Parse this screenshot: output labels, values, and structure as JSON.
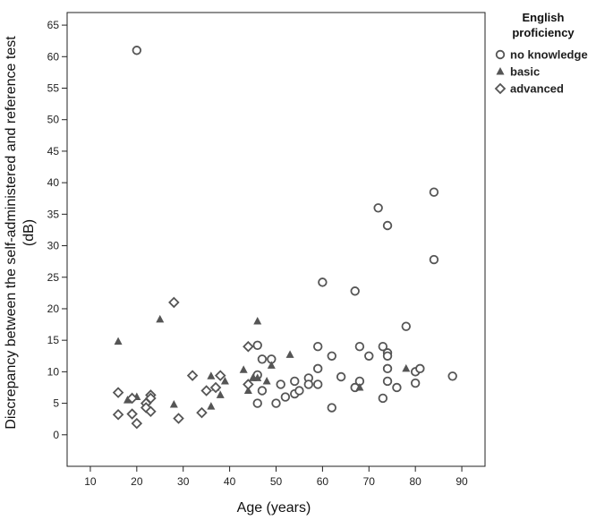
{
  "chart_data": {
    "type": "scatter",
    "title": "",
    "xlabel": "Age (years)",
    "ylabel_line1": "Discrepancy between the self-administered and reference test",
    "ylabel_line2": "(dB)",
    "xlim": [
      5,
      95
    ],
    "ylim": [
      -5,
      67
    ],
    "xticks": [
      10,
      20,
      30,
      40,
      50,
      60,
      70,
      80,
      90
    ],
    "yticks": [
      0,
      5,
      10,
      15,
      20,
      25,
      30,
      35,
      40,
      45,
      50,
      55,
      60,
      65
    ],
    "grid": false,
    "legend_title_line1": "English",
    "legend_title_line2": "proficiency",
    "legend_position": "right",
    "marker_color": "#555555",
    "series": [
      {
        "name": "no knowledge",
        "marker": "circle",
        "points": [
          [
            20,
            61
          ],
          [
            46,
            14.2
          ],
          [
            47,
            12
          ],
          [
            46,
            9.5
          ],
          [
            47,
            7
          ],
          [
            46,
            5
          ],
          [
            49,
            12
          ],
          [
            50,
            5
          ],
          [
            51,
            8
          ],
          [
            52,
            6
          ],
          [
            54,
            6.5
          ],
          [
            55,
            7
          ],
          [
            54,
            8.5
          ],
          [
            57,
            9
          ],
          [
            57,
            8
          ],
          [
            59,
            14
          ],
          [
            59,
            10.5
          ],
          [
            59,
            8
          ],
          [
            60,
            24.2
          ],
          [
            62,
            12.5
          ],
          [
            62,
            4.3
          ],
          [
            64,
            9.2
          ],
          [
            67,
            22.8
          ],
          [
            67,
            7.5
          ],
          [
            68,
            14
          ],
          [
            68,
            8.5
          ],
          [
            70,
            12.5
          ],
          [
            72,
            36
          ],
          [
            73,
            14
          ],
          [
            73,
            5.8
          ],
          [
            74,
            33.2
          ],
          [
            74,
            13
          ],
          [
            74,
            12.5
          ],
          [
            74,
            10.5
          ],
          [
            74,
            8.5
          ],
          [
            76,
            7.5
          ],
          [
            78,
            17.2
          ],
          [
            80,
            10
          ],
          [
            80,
            8.2
          ],
          [
            81,
            10.5
          ],
          [
            84,
            38.5
          ],
          [
            84,
            27.8
          ],
          [
            88,
            9.3
          ]
        ]
      },
      {
        "name": "basic",
        "marker": "triangle",
        "points": [
          [
            16,
            14.8
          ],
          [
            18,
            5.5
          ],
          [
            19,
            6
          ],
          [
            20,
            6
          ],
          [
            25,
            18.3
          ],
          [
            28,
            4.8
          ],
          [
            36,
            9.3
          ],
          [
            36,
            4.5
          ],
          [
            37,
            7.5
          ],
          [
            38,
            6.3
          ],
          [
            39,
            8.5
          ],
          [
            43,
            10.3
          ],
          [
            44,
            7
          ],
          [
            45,
            9
          ],
          [
            46,
            18
          ],
          [
            46,
            9
          ],
          [
            48,
            8.5
          ],
          [
            49,
            11
          ],
          [
            53,
            12.7
          ],
          [
            68,
            7.5
          ],
          [
            78,
            10.5
          ]
        ]
      },
      {
        "name": "advanced",
        "marker": "diamond",
        "points": [
          [
            16,
            6.7
          ],
          [
            16,
            3.2
          ],
          [
            19,
            5.8
          ],
          [
            19,
            3.3
          ],
          [
            20,
            1.8
          ],
          [
            22,
            5
          ],
          [
            22,
            4.3
          ],
          [
            23,
            6.3
          ],
          [
            23,
            5.8
          ],
          [
            23,
            3.7
          ],
          [
            28,
            21
          ],
          [
            29,
            2.6
          ],
          [
            32,
            9.4
          ],
          [
            34,
            3.5
          ],
          [
            35,
            7
          ],
          [
            37,
            7.5
          ],
          [
            38,
            9.4
          ],
          [
            44,
            14
          ],
          [
            44,
            8
          ]
        ]
      }
    ]
  }
}
